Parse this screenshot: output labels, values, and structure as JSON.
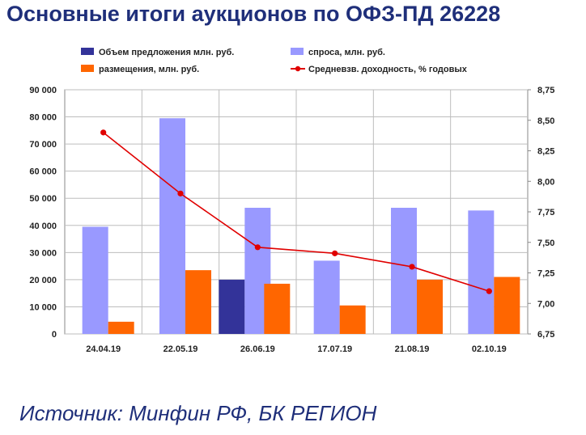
{
  "page": {
    "title": "Основные итоги аукционов по ОФЗ-ПД 26228",
    "source": "Источник: Минфин РФ, БК РЕГИОН"
  },
  "chart_data": {
    "type": "bar",
    "title": "Основные итоги аукционов по ОФЗ-ПД 26228",
    "categories": [
      "24.04.19",
      "22.05.19",
      "26.06.19",
      "17.07.19",
      "21.08.19",
      "02.10.19"
    ],
    "series": [
      {
        "name": "Объем предложения млн. руб.",
        "type": "bar",
        "axis": "left",
        "color": "#333399",
        "values": [
          null,
          null,
          20000,
          null,
          null,
          null
        ]
      },
      {
        "name": "спроса, млн. руб.",
        "type": "bar",
        "axis": "left",
        "color": "#9999ff",
        "values": [
          39500,
          79500,
          46500,
          27000,
          46500,
          45500
        ]
      },
      {
        "name": "размещения, млн. руб.",
        "type": "bar",
        "axis": "left",
        "color": "#ff6600",
        "values": [
          4500,
          23500,
          18500,
          10500,
          20000,
          21000
        ]
      },
      {
        "name": "Средневзв. доходность, % годовых",
        "type": "line",
        "axis": "right",
        "color": "#e00000",
        "values": [
          8.4,
          7.9,
          7.46,
          7.41,
          7.3,
          7.1
        ]
      }
    ],
    "y_left": {
      "min": 0,
      "max": 90000,
      "step": 10000,
      "ticks": [
        "0",
        "10 000",
        "20 000",
        "30 000",
        "40 000",
        "50 000",
        "60 000",
        "70 000",
        "80 000",
        "90 000"
      ]
    },
    "y_right": {
      "min": 6.75,
      "max": 8.75,
      "step": 0.25,
      "ticks": [
        "6,75",
        "7,00",
        "7,25",
        "7,50",
        "7,75",
        "8,00",
        "8,25",
        "8,50",
        "8,75"
      ]
    },
    "grid": true,
    "legend": "top"
  }
}
